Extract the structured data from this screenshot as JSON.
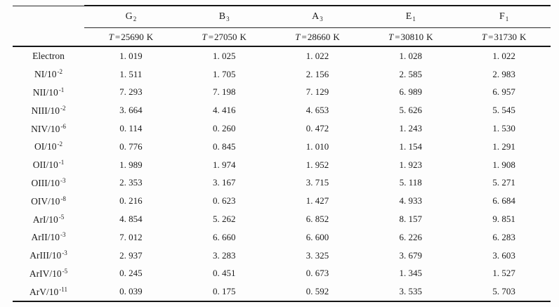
{
  "table": {
    "temp_prefix": "T",
    "temp_equals": "=",
    "temp_unit": "K",
    "columns": [
      {
        "letter": "G",
        "sub": "2",
        "temp": "25690"
      },
      {
        "letter": "B",
        "sub": "3",
        "temp": "27050"
      },
      {
        "letter": "A",
        "sub": "3",
        "temp": "28660"
      },
      {
        "letter": "E",
        "sub": "1",
        "temp": "30810"
      },
      {
        "letter": "F",
        "sub": "1",
        "temp": "31730"
      }
    ],
    "rows": [
      {
        "label_base": "Electron",
        "label_exp": "",
        "values": [
          "1.019",
          "1.025",
          "1.022",
          "1.028",
          "1.022"
        ]
      },
      {
        "label_base": "NI/10",
        "label_exp": "-2",
        "values": [
          "1.511",
          "1.705",
          "2.156",
          "2.585",
          "2.983"
        ]
      },
      {
        "label_base": "NII/10",
        "label_exp": "-1",
        "values": [
          "7.293",
          "7.198",
          "7.129",
          "6.989",
          "6.957"
        ]
      },
      {
        "label_base": "NIII/10",
        "label_exp": "-2",
        "values": [
          "3.664",
          "4.416",
          "4.653",
          "5.626",
          "5.545"
        ]
      },
      {
        "label_base": "NIV/10",
        "label_exp": "-6",
        "values": [
          "0.114",
          "0.260",
          "0.472",
          "1.243",
          "1.530"
        ]
      },
      {
        "label_base": "OI/10",
        "label_exp": "-2",
        "values": [
          "0.776",
          "0.845",
          "1.010",
          "1.154",
          "1.291"
        ]
      },
      {
        "label_base": "OII/10",
        "label_exp": "-1",
        "values": [
          "1.989",
          "1.974",
          "1.952",
          "1.923",
          "1.908"
        ]
      },
      {
        "label_base": "OIII/10",
        "label_exp": "-3",
        "values": [
          "2.353",
          "3.167",
          "3.715",
          "5.118",
          "5.271"
        ]
      },
      {
        "label_base": "OIV/10",
        "label_exp": "-8",
        "values": [
          "0.216",
          "0.623",
          "1.427",
          "4.933",
          "6.684"
        ]
      },
      {
        "label_base": "ArI/10",
        "label_exp": "-5",
        "values": [
          "4.854",
          "5.262",
          "6.852",
          "8.157",
          "9.851"
        ]
      },
      {
        "label_base": "ArII/10",
        "label_exp": "-3",
        "values": [
          "7.012",
          "6.660",
          "6.600",
          "6.226",
          "6.283"
        ]
      },
      {
        "label_base": "ArIII/10",
        "label_exp": "-3",
        "values": [
          "2.937",
          "3.283",
          "3.325",
          "3.679",
          "3.603"
        ]
      },
      {
        "label_base": "ArIV/10",
        "label_exp": "-5",
        "values": [
          "0.245",
          "0.451",
          "0.673",
          "1.345",
          "1.527"
        ]
      },
      {
        "label_base": "ArV/10",
        "label_exp": "-11",
        "values": [
          "0.039",
          "0.175",
          "0.592",
          "3.535",
          "5.703"
        ]
      }
    ]
  },
  "colors": {
    "background": "#fdfdfd",
    "text": "#1b1b1b",
    "rule": "#161616"
  }
}
